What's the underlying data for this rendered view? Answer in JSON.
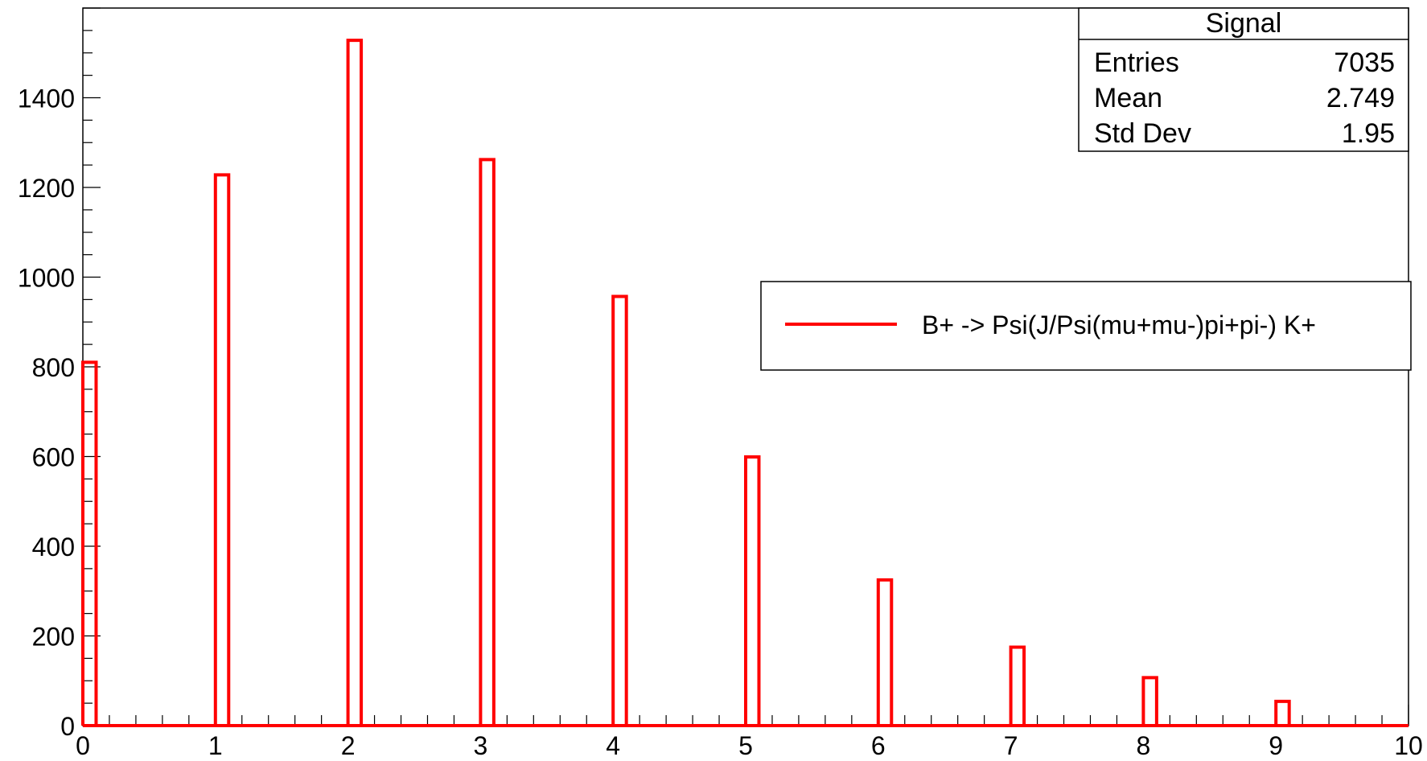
{
  "chart_data": {
    "type": "bar",
    "title": "",
    "xlabel": "",
    "ylabel": "",
    "xlim": [
      0,
      10
    ],
    "ylim": [
      0,
      1600
    ],
    "x_ticks": [
      "0",
      "1",
      "2",
      "3",
      "4",
      "5",
      "6",
      "7",
      "8",
      "9",
      "10"
    ],
    "y_ticks": [
      "0",
      "200",
      "400",
      "600",
      "800",
      "1000",
      "1200",
      "1400"
    ],
    "bin_width": 0.1,
    "series": [
      {
        "name": "B+ -> Psi(J/Psi(mu+mu-)pi+pi-) K+",
        "color": "#ff0000",
        "x": [
          0,
          1,
          2,
          3,
          4,
          5,
          6,
          7,
          8,
          9
        ],
        "values": [
          810,
          1228,
          1528,
          1262,
          957,
          599,
          325,
          175,
          107,
          54
        ]
      }
    ],
    "stats_box": {
      "title": "Signal",
      "rows": [
        {
          "label": "Entries",
          "value": "7035"
        },
        {
          "label": "Mean",
          "value": "2.749"
        },
        {
          "label": "Std Dev",
          "value": "1.95"
        }
      ]
    },
    "legend": {
      "position": "right",
      "entries": [
        "B+ -> Psi(J/Psi(mu+mu-)pi+pi-) K+"
      ]
    },
    "grid": false
  }
}
